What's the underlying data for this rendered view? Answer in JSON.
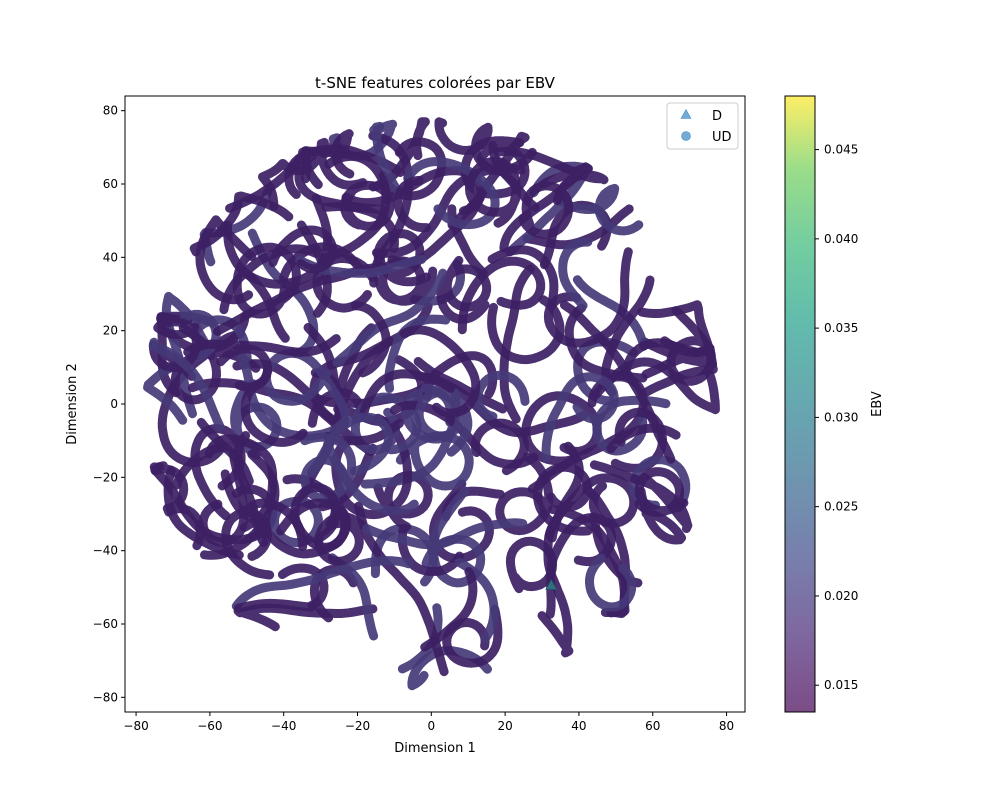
{
  "chart_data": {
    "type": "scatter",
    "title": "t-SNE features colorées par EBV",
    "xlabel": "Dimension 1",
    "ylabel": "Dimension 2",
    "xlim": [
      -83,
      85
    ],
    "ylim": [
      -84,
      84
    ],
    "xticks": [
      -80,
      -60,
      -40,
      -20,
      0,
      20,
      40,
      60,
      80
    ],
    "yticks": [
      -80,
      -60,
      -40,
      -20,
      0,
      20,
      40,
      60,
      80
    ],
    "grid": false,
    "legend_position": "top-right",
    "series": [
      {
        "name": "D",
        "marker": "triangle",
        "points": [
          [
            32.5,
            -49.5
          ]
        ]
      },
      {
        "name": "UD",
        "marker": "circle",
        "note_dense_cloud": true
      }
    ],
    "colorbar": {
      "label": "EBV",
      "colormap": "viridis",
      "range": [
        0.0135,
        0.048
      ],
      "ticks": [
        0.015,
        0.02,
        0.025,
        0.03,
        0.035,
        0.04,
        0.045
      ],
      "tick_labels": [
        "0.015",
        "0.020",
        "0.025",
        "0.030",
        "0.035",
        "0.040",
        "0.045"
      ]
    },
    "colors": {
      "point_main": "#3d1f64",
      "point_alt": "#453a78",
      "legend_marker": "#5b9ccd",
      "D_marker": "#2f6f80"
    },
    "cloud_radius": 77
  }
}
